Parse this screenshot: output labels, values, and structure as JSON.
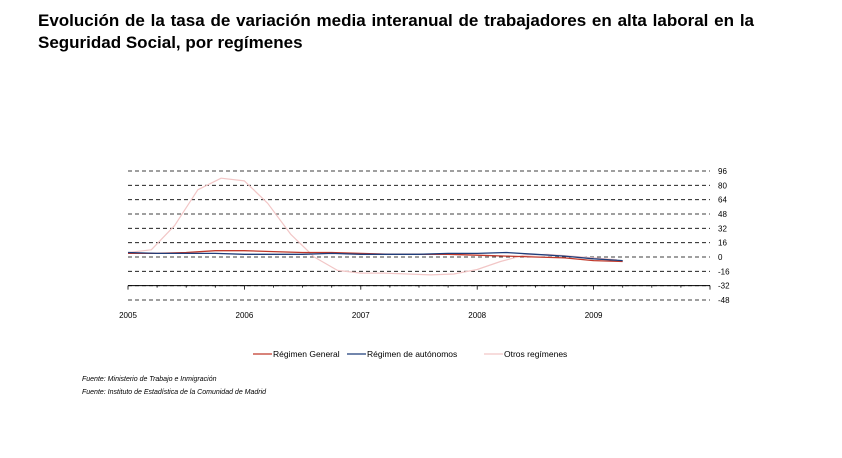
{
  "page": {
    "title": "Evolución de la tasa de variación media interanual de trabajadores en alta laboral en la Seguridad Social, por  regímenes",
    "source_lines": [
      "Fuente: Ministerio de Trabajo e Inmigración",
      "Fuente: Instituto de Estadística de la Comunidad de Madrid"
    ]
  },
  "chart_data": {
    "type": "line",
    "title": "Evolución de la tasa de variación media interanual de trabajadores en alta laboral en la Seguridad Social, por  regímenes",
    "xlabel": "",
    "ylabel": "",
    "x_ticks": [
      "2005",
      "2006",
      "2007",
      "2008",
      "2009"
    ],
    "xlim": [
      2005,
      2010
    ],
    "ylim": [
      -48,
      96
    ],
    "y_ticks": [
      96,
      80,
      64,
      48,
      32,
      16,
      0,
      -16,
      -32,
      -48
    ],
    "y_tick_labels": [
      "96",
      "80",
      "64",
      "48",
      "32",
      "16",
      "0",
      "-16",
      "-32",
      "-48"
    ],
    "y_axis_position": "right",
    "grid": "horizontal dashed",
    "legend_position": "bottom",
    "series": [
      {
        "name": "Régimen General",
        "color": "#c0392b",
        "x": [
          2005.0,
          2005.25,
          2005.5,
          2005.75,
          2006.0,
          2006.25,
          2006.5,
          2006.75,
          2007.0,
          2007.25,
          2007.5,
          2007.75,
          2008.0,
          2008.25,
          2008.5,
          2008.75,
          2009.0,
          2009.25
        ],
        "values": [
          4,
          4,
          5,
          7,
          7,
          6,
          5,
          5,
          4,
          3,
          3,
          3,
          2,
          1,
          0,
          -1,
          -4,
          -5
        ]
      },
      {
        "name": "Régimen de autónomos",
        "color": "#1f3d7a",
        "x": [
          2005.0,
          2005.25,
          2005.5,
          2005.75,
          2006.0,
          2006.25,
          2006.5,
          2006.75,
          2007.0,
          2007.25,
          2007.5,
          2007.75,
          2008.0,
          2008.25,
          2008.5,
          2008.75,
          2009.0,
          2009.25
        ],
        "values": [
          5,
          4,
          4,
          4,
          3,
          3,
          3,
          4,
          3,
          3,
          3,
          4,
          4,
          5,
          3,
          1,
          -2,
          -4
        ]
      },
      {
        "name": "Otros regímenes",
        "color": "#f2c6c6",
        "x": [
          2005.0,
          2005.2,
          2005.4,
          2005.6,
          2005.8,
          2006.0,
          2006.2,
          2006.4,
          2006.6,
          2006.8,
          2007.0,
          2007.2,
          2007.4,
          2007.6,
          2007.8,
          2008.0,
          2008.2,
          2008.4,
          2008.6,
          2008.8,
          2009.0,
          2009.2
        ],
        "values": [
          5,
          8,
          35,
          75,
          88,
          85,
          60,
          25,
          0,
          -15,
          -18,
          -18,
          -19,
          -20,
          -19,
          -14,
          -5,
          2,
          3,
          1,
          -1,
          -3
        ]
      }
    ]
  }
}
